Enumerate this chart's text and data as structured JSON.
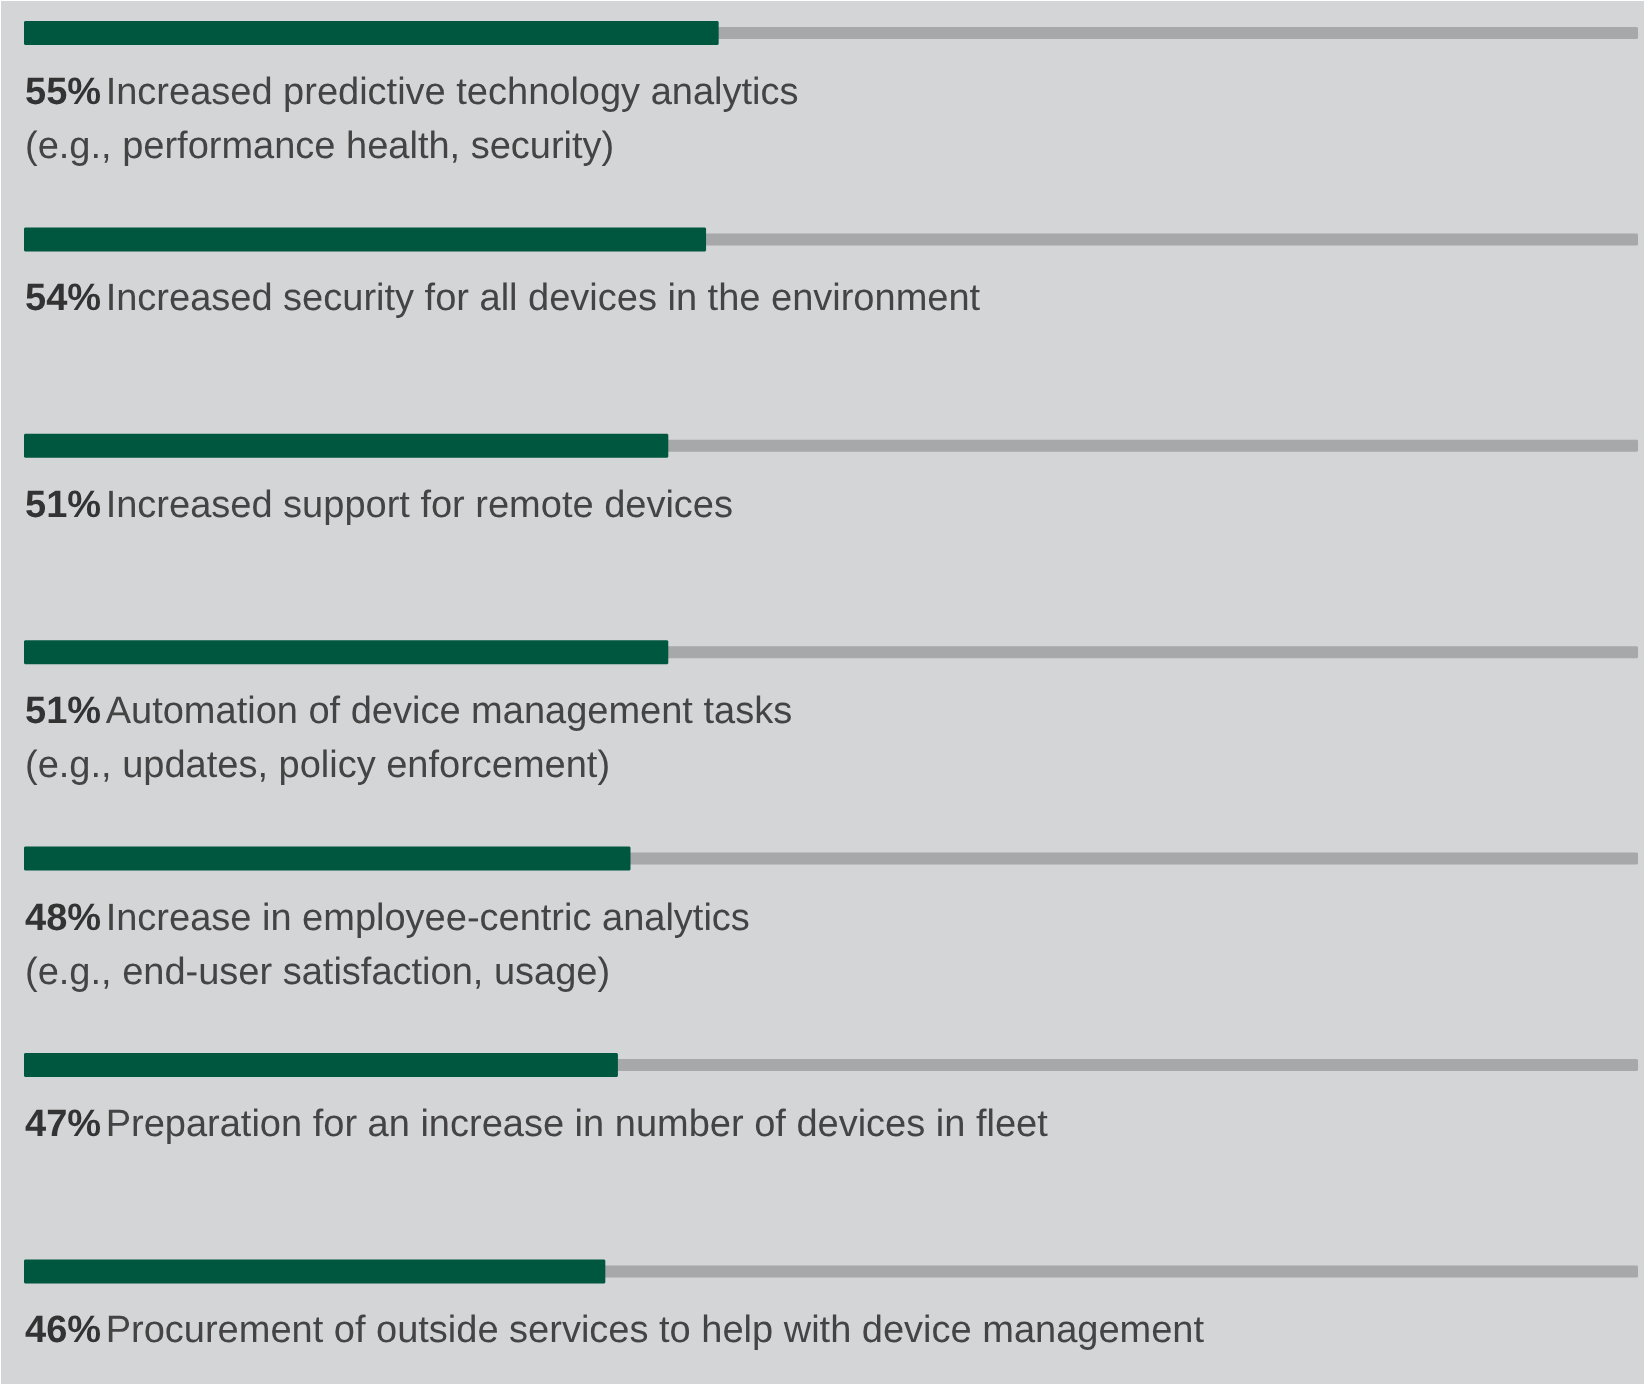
{
  "chart_data": {
    "type": "bar",
    "orientation": "horizontal",
    "data_labels": true,
    "value_labels": [
      "55%",
      "54%",
      "51%",
      "51%",
      "48%",
      "47%",
      "46%"
    ],
    "categories": [
      "Increased predictive technology analytics\n(e.g., performance health, security)",
      "Increased security for all devices in the environment",
      "Increased support for remote devices",
      "Automation of device management tasks\n(e.g., updates, policy enforcement)",
      "Increase in employee-centric analytics\n(e.g., end-user satisfaction, usage)",
      "Preparation for an increase in number of devices in fleet",
      "Procurement of outside services to help with device management"
    ],
    "values": [
      55,
      54,
      51,
      51,
      48,
      47,
      46
    ],
    "color": "#00573f",
    "xlim": [
      0,
      128
    ],
    "tick_labels": false,
    "grid": false
  }
}
